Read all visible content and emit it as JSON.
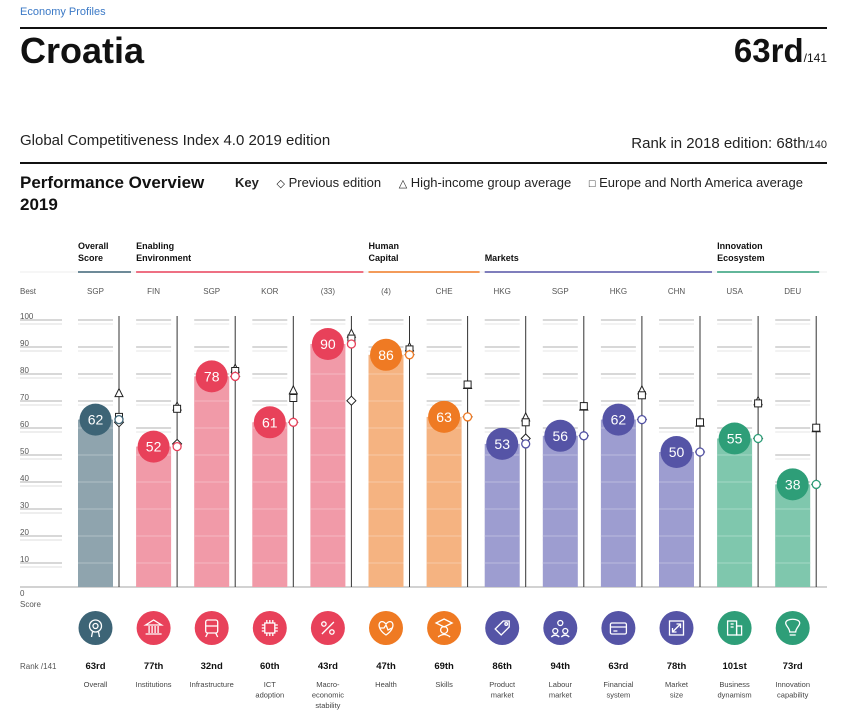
{
  "breadcrumb": "Economy Profiles",
  "country": "Croatia",
  "rank": {
    "value": "63rd",
    "of": "/141"
  },
  "edition": "Global Competitiveness Index 4.0 2019 edition",
  "rank_2018": {
    "label": "Rank in 2018 edition: 68th",
    "of": "/140"
  },
  "performance_title": "Performance Overview 2019",
  "key": {
    "label": "Key",
    "previous": "Previous edition",
    "high_income": "High-income group average",
    "europe": "Europe and North America average"
  },
  "colors": {
    "overall": "#3d6476",
    "enabling": "#e8415a",
    "human": "#ef7a23",
    "markets": "#5554a6",
    "innovation": "#2e9e78"
  },
  "chart_data": {
    "type": "bar",
    "title": "Performance Overview 2019",
    "ylim": [
      0,
      100
    ],
    "yticks": [
      "100",
      "90",
      "80",
      "70",
      "60",
      "50",
      "40",
      "30",
      "20",
      "10",
      "0"
    ],
    "y_axis_label": "Score",
    "best_label": "Best",
    "rank_axis_label": "Rank /141",
    "groups": [
      {
        "name": "Overall Score",
        "lines": [
          "Overall",
          "Score"
        ],
        "color_key": "overall",
        "start": 0,
        "end": 0
      },
      {
        "name": "Enabling Environment",
        "lines": [
          "Enabling",
          "Environment"
        ],
        "color_key": "enabling",
        "start": 1,
        "end": 4
      },
      {
        "name": "Human Capital",
        "lines": [
          "Human",
          "Capital"
        ],
        "color_key": "human",
        "start": 5,
        "end": 6
      },
      {
        "name": "Markets",
        "lines": [
          "Markets"
        ],
        "color_key": "markets",
        "start": 7,
        "end": 10
      },
      {
        "name": "Innovation Ecosystem",
        "lines": [
          "Innovation",
          "Ecosystem"
        ],
        "color_key": "innovation",
        "start": 11,
        "end": 12
      }
    ],
    "pillars": [
      {
        "label": [
          "Overall"
        ],
        "best": "SGP",
        "score": 62,
        "previous": 61,
        "high_income": 72,
        "europe": 63,
        "rank": "63rd",
        "group": "overall",
        "icon": "overall-icon"
      },
      {
        "label": [
          "Institutions"
        ],
        "best": "FIN",
        "score": 52,
        "previous": 53,
        "high_income": 67,
        "europe": 66,
        "rank": "77th",
        "group": "enabling",
        "icon": "institutions-icon"
      },
      {
        "label": [
          "Infrastructure"
        ],
        "best": "SGP",
        "score": 78,
        "previous": 78,
        "high_income": 81,
        "europe": 80,
        "rank": "32nd",
        "group": "enabling",
        "icon": "infrastructure-icon"
      },
      {
        "label": [
          "ICT",
          "adoption"
        ],
        "best": "KOR",
        "score": 61,
        "previous": 61,
        "high_income": 73,
        "europe": 70,
        "rank": "60th",
        "group": "enabling",
        "icon": "ict-icon"
      },
      {
        "label": [
          "Macro-",
          "economic",
          "stability"
        ],
        "best": "(33)",
        "score": 90,
        "previous": 69,
        "high_income": 94,
        "europe": 92,
        "rank": "43rd",
        "group": "enabling",
        "icon": "macro-icon"
      },
      {
        "label": [
          "Health"
        ],
        "best": "(4)",
        "score": 86,
        "previous": 86,
        "high_income": 89,
        "europe": 88,
        "rank": "47th",
        "group": "human",
        "icon": "health-icon"
      },
      {
        "label": [
          "Skills"
        ],
        "best": "CHE",
        "score": 63,
        "previous": 63,
        "high_income": 75,
        "europe": 75,
        "rank": "69th",
        "group": "human",
        "icon": "skills-icon"
      },
      {
        "label": [
          "Product",
          "market"
        ],
        "best": "HKG",
        "score": 53,
        "previous": 55,
        "high_income": 63,
        "europe": 61,
        "rank": "86th",
        "group": "markets",
        "icon": "product-market-icon"
      },
      {
        "label": [
          "Labour",
          "market"
        ],
        "best": "SGP",
        "score": 56,
        "previous": 56,
        "high_income": 67,
        "europe": 67,
        "rank": "94th",
        "group": "markets",
        "icon": "labour-market-icon"
      },
      {
        "label": [
          "Financial",
          "system"
        ],
        "best": "HKG",
        "score": 62,
        "previous": 62,
        "high_income": 73,
        "europe": 71,
        "rank": "63rd",
        "group": "markets",
        "icon": "financial-icon"
      },
      {
        "label": [
          "Market",
          "size"
        ],
        "best": "CHN",
        "score": 50,
        "previous": 50,
        "high_income": 61,
        "europe": 61,
        "rank": "78th",
        "group": "markets",
        "icon": "market-size-icon"
      },
      {
        "label": [
          "Business",
          "dynamism"
        ],
        "best": "USA",
        "score": 55,
        "previous": 55,
        "high_income": 69,
        "europe": 68,
        "rank": "101st",
        "group": "innovation",
        "icon": "business-icon"
      },
      {
        "label": [
          "Innovation",
          "capability"
        ],
        "best": "DEU",
        "score": 38,
        "previous": 38,
        "high_income": 59,
        "europe": 59,
        "rank": "73rd",
        "group": "innovation",
        "icon": "innovation-icon"
      }
    ]
  }
}
